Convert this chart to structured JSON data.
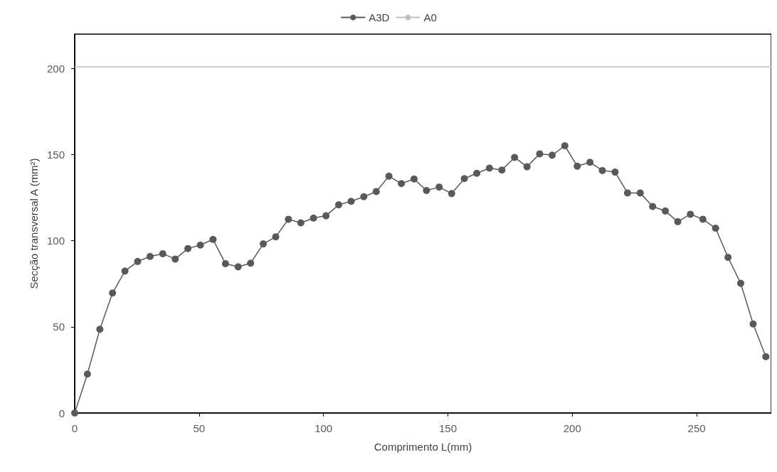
{
  "chart_data": {
    "type": "line",
    "xlabel": "Comprimento L(mm)",
    "ylabel": "Secção transversal A (mm²)",
    "xlim": [
      0,
      280
    ],
    "ylim": [
      0,
      220
    ],
    "xticks": [
      0,
      50,
      100,
      150,
      200,
      250
    ],
    "yticks": [
      0,
      50,
      100,
      150,
      200
    ],
    "grid": false,
    "legend": "top",
    "marker": "circle",
    "line_style": "solid",
    "series": [
      {
        "name": "A3D",
        "color": "#595959",
        "x": [
          0,
          5.1,
          10.1,
          15.2,
          20.2,
          25.3,
          30.3,
          35.4,
          40.4,
          45.5,
          50.5,
          55.6,
          60.6,
          65.7,
          70.7,
          75.8,
          80.8,
          85.9,
          90.9,
          96.0,
          101.0,
          106.1,
          111.1,
          116.2,
          121.2,
          126.3,
          131.3,
          136.4,
          141.4,
          146.5,
          151.5,
          156.6,
          161.6,
          166.7,
          171.7,
          176.8,
          181.8,
          186.9,
          191.9,
          197.0,
          202.0,
          207.1,
          212.1,
          217.2,
          222.2,
          227.3,
          232.3,
          237.4,
          242.4,
          247.5,
          252.5,
          257.6,
          262.6,
          267.7,
          272.7,
          277.8
        ],
        "values": [
          0,
          22.6,
          48.6,
          69.7,
          82.4,
          88.0,
          90.9,
          92.5,
          89.4,
          95.5,
          97.5,
          100.8,
          86.7,
          84.9,
          87.0,
          98.2,
          102.3,
          112.5,
          110.4,
          113.2,
          114.5,
          120.9,
          122.9,
          125.6,
          128.6,
          137.5,
          133.2,
          135.9,
          129.2,
          131.2,
          127.4,
          136.1,
          139.2,
          142.2,
          141.1,
          148.4,
          143.0,
          150.5,
          149.7,
          155.2,
          143.3,
          145.6,
          140.8,
          139.9,
          127.8,
          127.8,
          119.9,
          117.3,
          111.1,
          115.4,
          112.5,
          107.3,
          90.4,
          75.3,
          51.7,
          32.7
        ]
      },
      {
        "name": "A0",
        "color": "#bfbfbf",
        "marker": "none",
        "x": [
          0,
          280
        ],
        "values": [
          201,
          201
        ]
      }
    ]
  }
}
